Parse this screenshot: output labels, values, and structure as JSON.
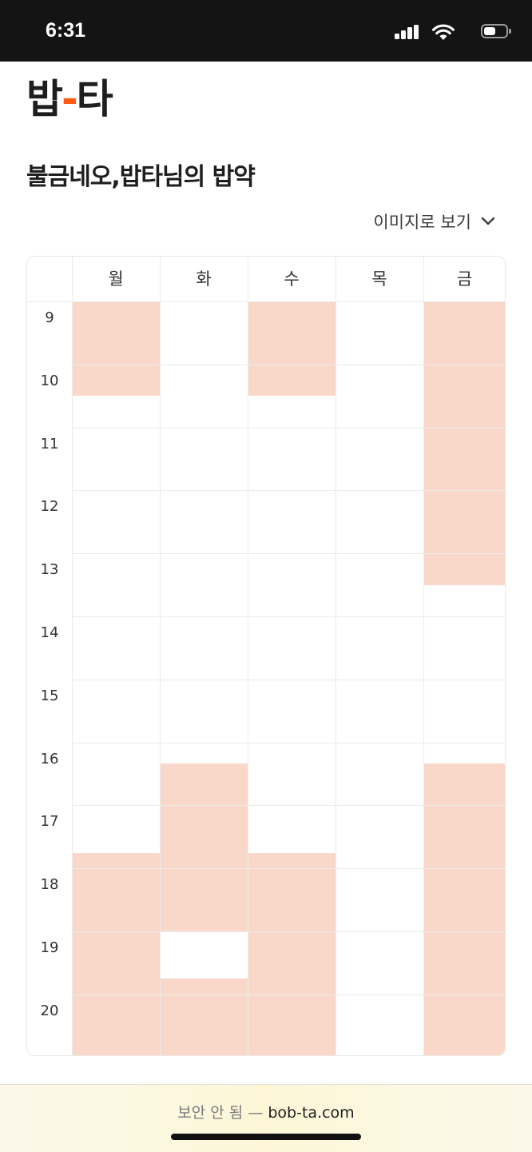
{
  "status_bar": {
    "time": "6:31",
    "battery_level": 0.55
  },
  "app": {
    "logo_left": "밥",
    "logo_dash": "-",
    "logo_right": "타"
  },
  "page": {
    "title": "불금네오,밥타님의 밥약",
    "view_image_label": "이미지로 보기"
  },
  "timetable": {
    "days": [
      "월",
      "화",
      "수",
      "목",
      "금"
    ],
    "hours": [
      "9",
      "10",
      "11",
      "12",
      "13",
      "14",
      "15",
      "16",
      "17",
      "18",
      "19",
      "20"
    ],
    "highlight_color": "#f9d8c9",
    "busy_blocks": [
      {
        "day": 0,
        "start": 9.0,
        "end": 10.5
      },
      {
        "day": 2,
        "start": 9.0,
        "end": 10.5
      },
      {
        "day": 4,
        "start": 9.0,
        "end": 13.5
      },
      {
        "day": 1,
        "start": 16.33,
        "end": 19.0
      },
      {
        "day": 1,
        "start": 19.75,
        "end": 21.0
      },
      {
        "day": 0,
        "start": 17.75,
        "end": 21.0
      },
      {
        "day": 2,
        "start": 17.75,
        "end": 21.0
      },
      {
        "day": 4,
        "start": 16.33,
        "end": 21.0
      }
    ]
  },
  "browser": {
    "security_label": "보안 안 됨 —",
    "domain": "bob-ta.com"
  }
}
